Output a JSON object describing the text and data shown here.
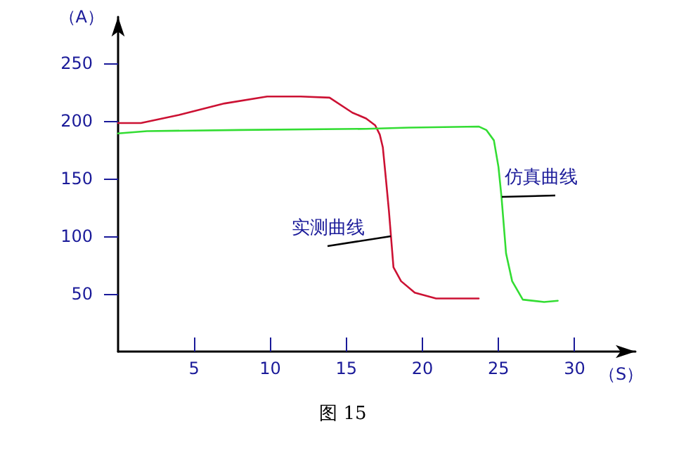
{
  "chart_data": {
    "type": "line",
    "title": "图 15",
    "xlabel": "（S）",
    "ylabel": "（A）",
    "xlim": [
      0,
      34
    ],
    "xticks": [
      5,
      10,
      15,
      20,
      25,
      30
    ],
    "ylim": [
      0,
      290
    ],
    "yticks": [
      50,
      100,
      150,
      200,
      250
    ],
    "grid": false,
    "marker": "none",
    "line_style": "solid",
    "annotations": [
      {
        "text": "实测曲线",
        "x": 17.9,
        "y": 100
      },
      {
        "text": "仿真曲线",
        "x": 25.2,
        "y": 134
      }
    ],
    "series": [
      {
        "color": "#cc1133",
        "x": [
          0,
          1.5,
          4,
          7,
          9.8,
          12,
          13.9,
          15.4,
          16.3,
          16.9,
          17.2,
          17.4,
          17.6,
          17.8,
          18.1,
          18.6,
          19.5,
          20.9,
          23.7
        ],
        "values": [
          198,
          198,
          205,
          215,
          221,
          221,
          220,
          207,
          202,
          196,
          188,
          177,
          150,
          122,
          73,
          61,
          51,
          46,
          46
        ]
      },
      {
        "color": "#33dd33",
        "x": [
          0,
          1.9,
          8,
          16.3,
          19.1,
          23.7,
          24.2,
          24.7,
          25,
          25.2,
          25.5,
          25.9,
          26.6,
          28,
          28.9
        ],
        "values": [
          189,
          191,
          192,
          193,
          194,
          195,
          192,
          183,
          160,
          134,
          85,
          61,
          45,
          43,
          44
        ]
      }
    ]
  }
}
